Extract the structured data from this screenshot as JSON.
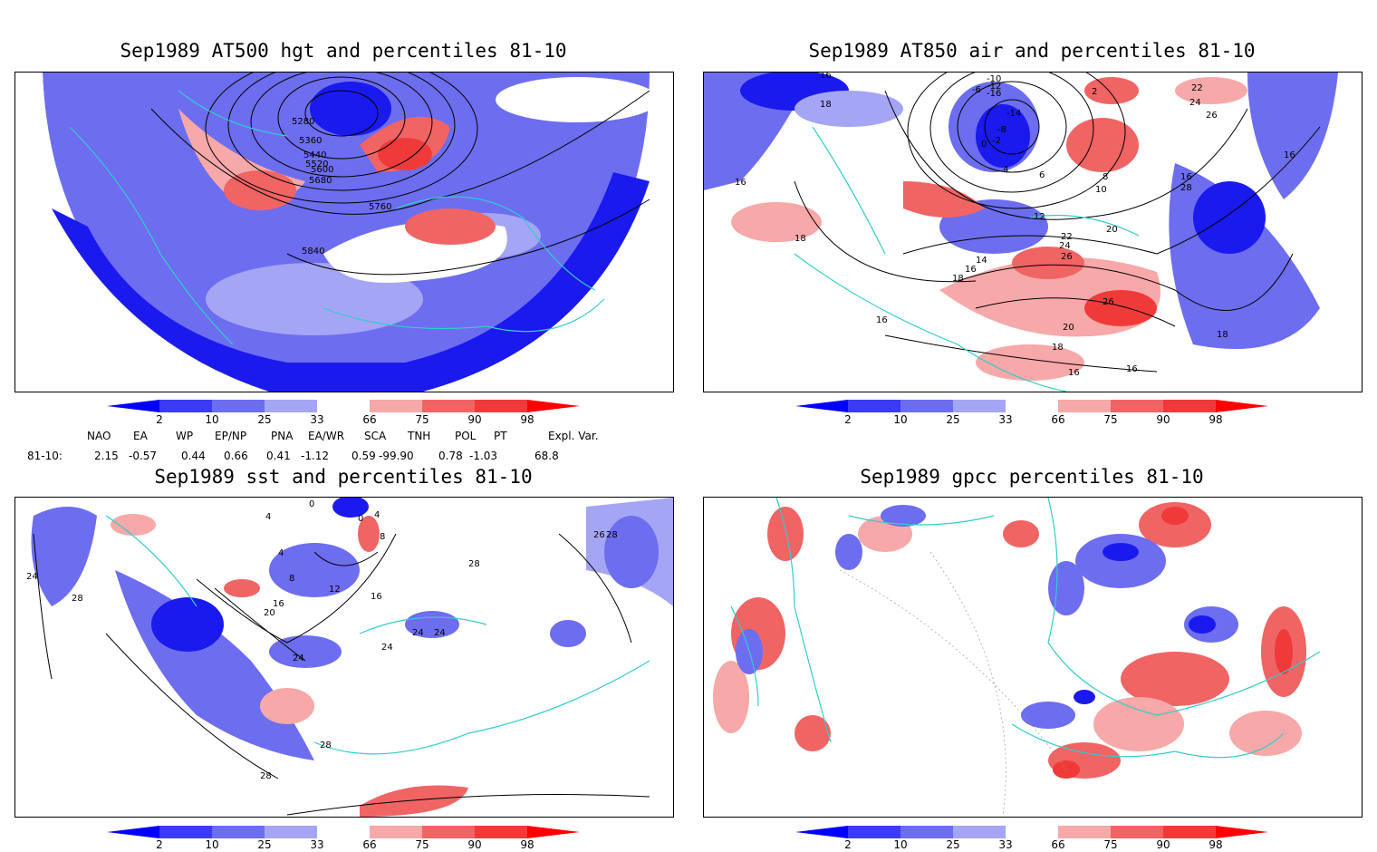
{
  "panels": [
    {
      "id": "hgt",
      "title": "Sep1989 AT500 hgt and percentiles 81-10",
      "contour_labels": [
        "5280",
        "5360",
        "5440",
        "5520",
        "5600",
        "5680",
        "5760",
        "5840"
      ]
    },
    {
      "id": "air",
      "title": "Sep1989 AT850 air and percentiles 81-10",
      "contour_labels": [
        "16",
        "18",
        "-10",
        "-12",
        "-16",
        "-6",
        "-8",
        "-14",
        "0",
        "-2",
        "2",
        "4",
        "6",
        "8",
        "10",
        "12",
        "14",
        "16",
        "18",
        "20",
        "22",
        "24",
        "26",
        "28",
        "16",
        "18",
        "16",
        "26",
        "20",
        "18",
        "16",
        "16",
        "18",
        "16",
        "22",
        "24",
        "26",
        "16"
      ]
    },
    {
      "id": "sst",
      "title": "Sep1989 sst and percentiles 81-10",
      "contour_labels": [
        "4",
        "0",
        "4",
        "0",
        "8",
        "4",
        "8",
        "12",
        "16",
        "20",
        "24",
        "28",
        "24",
        "24",
        "24",
        "28",
        "26",
        "28",
        "24",
        "16",
        "28",
        "28"
      ]
    },
    {
      "id": "gpcc",
      "title": "Sep1989 gpcc percentiles 81-10",
      "contour_labels": []
    }
  ],
  "colorbar": {
    "labels": [
      "2",
      "10",
      "25",
      "33",
      "66",
      "75",
      "90",
      "98"
    ],
    "colors": [
      "#0000ff",
      "#3b3bf5",
      "#6d6df0",
      "#a5a5f5",
      "#ffffff",
      "#f7a8a8",
      "#f06464",
      "#f03a3a",
      "#ff0000"
    ]
  },
  "indices": {
    "header": [
      "NAO",
      "EA",
      "WP",
      "EP/NP",
      "PNA",
      "EA/WR",
      "SCA",
      "TNH",
      "POL",
      "PT",
      "Expl. Var."
    ],
    "row_label": "81-10:",
    "values": [
      "2.15",
      "-0.57",
      "0.44",
      "0.66",
      "0.41",
      "-1.12",
      "0.59",
      "-99.90",
      "0.78",
      "-1.03",
      "68.8"
    ]
  },
  "colors": {
    "coast": "#33cccc",
    "contour": "#000000",
    "blue_strong": "#0000ff",
    "blue_mid": "#4646f0",
    "blue_light": "#7c7cf0",
    "red_light": "#f5a0a0",
    "red_mid": "#f05a5a",
    "red_strong": "#ff2020"
  }
}
